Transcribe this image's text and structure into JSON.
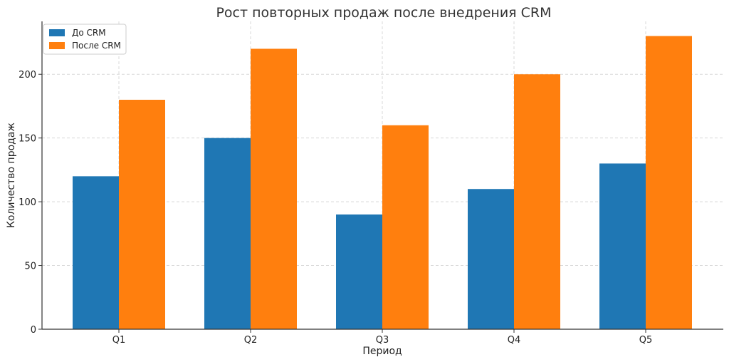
{
  "chart_data": {
    "type": "bar",
    "title": "Рост повторных продаж после внедрения CRM",
    "xlabel": "Период",
    "ylabel": "Количество продаж",
    "categories": [
      "Q1",
      "Q2",
      "Q3",
      "Q4",
      "Q5"
    ],
    "series": [
      {
        "name": "До CRM",
        "values": [
          120,
          150,
          90,
          110,
          130
        ],
        "color": "#1f77b4"
      },
      {
        "name": "После CRM",
        "values": [
          180,
          220,
          160,
          200,
          230
        ],
        "color": "#ff7f0e"
      }
    ],
    "yticks": [
      0,
      50,
      100,
      150,
      200
    ],
    "ylim": [
      0,
      241.5
    ],
    "grid": true,
    "legend": "top-left"
  }
}
